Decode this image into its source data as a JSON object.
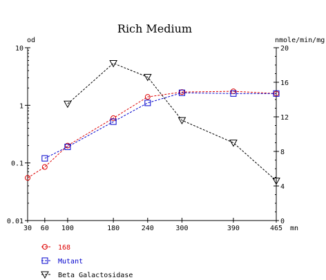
{
  "chart_data": {
    "type": "line",
    "title": "Rich Medium",
    "left_axis": {
      "label": "od",
      "scale": "log",
      "ylim": [
        0.01,
        10
      ],
      "ticks": [
        {
          "value": 10,
          "label": "10"
        },
        {
          "value": 1,
          "label": "1"
        },
        {
          "value": 0.1,
          "label": "0.1"
        },
        {
          "value": 0.01,
          "label": "0.01"
        }
      ]
    },
    "right_axis": {
      "label": "nmole/min/mg",
      "scale": "linear",
      "ylim": [
        0,
        20
      ],
      "ticks": [
        {
          "value": 20,
          "label": "20"
        },
        {
          "value": 16,
          "label": "16"
        },
        {
          "value": 12,
          "label": "12"
        },
        {
          "value": 8,
          "label": "8"
        },
        {
          "value": 4,
          "label": "4"
        },
        {
          "value": 0,
          "label": "0"
        }
      ]
    },
    "x_axis": {
      "label": "mn",
      "xlim": [
        30,
        465
      ],
      "ticks": [
        {
          "value": 30,
          "label": "30"
        },
        {
          "value": 60,
          "label": "60"
        },
        {
          "value": 100,
          "label": "100"
        },
        {
          "value": 180,
          "label": "180"
        },
        {
          "value": 240,
          "label": "240"
        },
        {
          "value": 300,
          "label": "300"
        },
        {
          "value": 390,
          "label": "390"
        },
        {
          "value": 465,
          "label": "465"
        }
      ]
    },
    "series": [
      {
        "name": "168",
        "axis": "left",
        "marker": "circle",
        "color": "#dd0000",
        "x": [
          30,
          60,
          100,
          180,
          240,
          300,
          390,
          465
        ],
        "y": [
          0.055,
          0.085,
          0.2,
          0.6,
          1.4,
          1.7,
          1.75,
          1.6
        ]
      },
      {
        "name": "Mutant",
        "axis": "left",
        "marker": "square",
        "color": "#0000cc",
        "x": [
          60,
          100,
          180,
          240,
          300,
          390,
          465
        ],
        "y": [
          0.12,
          0.19,
          0.52,
          1.1,
          1.65,
          1.6,
          1.6
        ]
      },
      {
        "name": "Beta Galactosidase",
        "axis": "right",
        "marker": "triangle-down",
        "color": "#000000",
        "x": [
          100,
          180,
          240,
          300,
          390,
          465
        ],
        "y": [
          13.5,
          18.2,
          16.6,
          11.6,
          9.0,
          4.6
        ]
      }
    ],
    "legend": "bottom-left",
    "grid": false
  }
}
